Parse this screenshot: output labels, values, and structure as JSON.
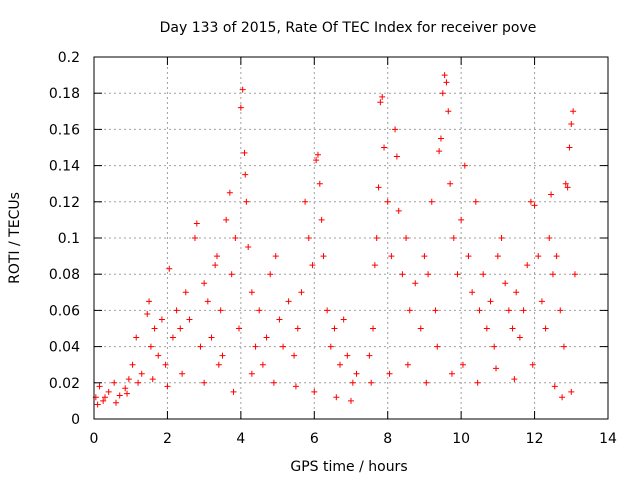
{
  "chart_data": {
    "type": "scatter",
    "title": "Day 133 of 2015, Rate Of TEC Index for receiver pove",
    "xlabel": "GPS time / hours",
    "ylabel": "ROTI / TECUs",
    "xlim": [
      0,
      14
    ],
    "ylim": [
      0,
      0.2
    ],
    "x_ticks": [
      "0",
      "2",
      "4",
      "6",
      "8",
      "10",
      "12",
      "14"
    ],
    "y_ticks": [
      "0",
      "0.02",
      "0.04",
      "0.06",
      "0.08",
      "0.1",
      "0.12",
      "0.14",
      "0.16",
      "0.18",
      "0.2"
    ],
    "grid": true,
    "marker": "+",
    "series_color": "#ff0000",
    "series": [
      {
        "name": "ROTI",
        "x": [
          0.05,
          0.15,
          0.25,
          0.4,
          0.55,
          0.7,
          0.85,
          0.95,
          1.05,
          1.15,
          1.3,
          1.45,
          1.5,
          1.55,
          1.65,
          1.75,
          1.85,
          1.95,
          2.05,
          2.15,
          2.25,
          2.35,
          2.5,
          2.6,
          2.75,
          2.8,
          2.9,
          3.0,
          3.1,
          3.2,
          3.3,
          3.35,
          3.45,
          3.5,
          3.6,
          3.7,
          3.75,
          3.85,
          3.95,
          4.0,
          4.05,
          4.1,
          4.12,
          4.15,
          4.2,
          4.3,
          4.4,
          4.5,
          4.6,
          4.7,
          4.8,
          4.95,
          5.05,
          5.15,
          5.3,
          5.45,
          5.55,
          5.65,
          5.75,
          5.85,
          5.95,
          6.05,
          6.1,
          6.15,
          6.2,
          6.25,
          6.35,
          6.45,
          6.55,
          6.7,
          6.8,
          6.9,
          7.05,
          7.15,
          7.5,
          7.6,
          7.65,
          7.7,
          7.75,
          7.8,
          7.85,
          7.9,
          8.0,
          8.1,
          8.2,
          8.25,
          8.3,
          8.4,
          8.5,
          8.6,
          8.75,
          8.9,
          9.0,
          9.1,
          9.2,
          9.3,
          9.4,
          9.45,
          9.5,
          9.55,
          9.6,
          9.65,
          9.7,
          9.8,
          9.9,
          10.0,
          10.1,
          10.2,
          10.3,
          10.4,
          10.5,
          10.6,
          10.7,
          10.8,
          10.9,
          11.0,
          11.1,
          11.2,
          11.3,
          11.4,
          11.5,
          11.6,
          11.7,
          11.8,
          11.9,
          12.0,
          12.1,
          12.2,
          12.3,
          12.4,
          12.45,
          12.5,
          12.6,
          12.7,
          12.8,
          12.85,
          12.9,
          12.95,
          13.0,
          13.05,
          13.1,
          0.1,
          0.3,
          0.6,
          0.9,
          1.2,
          1.6,
          2.0,
          2.4,
          3.0,
          3.4,
          3.8,
          4.3,
          4.9,
          5.5,
          6.0,
          6.6,
          7.0,
          7.55,
          8.05,
          8.55,
          9.05,
          9.35,
          9.75,
          10.05,
          10.45,
          10.95,
          11.45,
          11.95,
          12.55,
          12.75,
          13.0
        ],
        "y": [
          0.012,
          0.018,
          0.01,
          0.015,
          0.02,
          0.013,
          0.017,
          0.022,
          0.03,
          0.045,
          0.025,
          0.058,
          0.065,
          0.04,
          0.05,
          0.035,
          0.055,
          0.03,
          0.083,
          0.045,
          0.06,
          0.05,
          0.07,
          0.055,
          0.1,
          0.108,
          0.04,
          0.075,
          0.065,
          0.045,
          0.085,
          0.09,
          0.06,
          0.035,
          0.11,
          0.125,
          0.08,
          0.1,
          0.05,
          0.172,
          0.182,
          0.147,
          0.135,
          0.12,
          0.095,
          0.07,
          0.04,
          0.06,
          0.03,
          0.045,
          0.08,
          0.09,
          0.055,
          0.04,
          0.065,
          0.035,
          0.05,
          0.07,
          0.12,
          0.1,
          0.085,
          0.143,
          0.146,
          0.13,
          0.11,
          0.09,
          0.06,
          0.04,
          0.05,
          0.03,
          0.055,
          0.035,
          0.02,
          0.025,
          0.035,
          0.05,
          0.085,
          0.1,
          0.128,
          0.175,
          0.178,
          0.15,
          0.12,
          0.09,
          0.16,
          0.145,
          0.115,
          0.08,
          0.1,
          0.06,
          0.075,
          0.05,
          0.09,
          0.08,
          0.12,
          0.06,
          0.148,
          0.155,
          0.18,
          0.19,
          0.186,
          0.17,
          0.13,
          0.1,
          0.08,
          0.11,
          0.14,
          0.09,
          0.07,
          0.12,
          0.06,
          0.08,
          0.05,
          0.065,
          0.04,
          0.09,
          0.1,
          0.075,
          0.06,
          0.05,
          0.07,
          0.045,
          0.06,
          0.085,
          0.12,
          0.118,
          0.09,
          0.065,
          0.05,
          0.1,
          0.124,
          0.08,
          0.09,
          0.06,
          0.04,
          0.13,
          0.128,
          0.15,
          0.163,
          0.17,
          0.08,
          0.008,
          0.012,
          0.009,
          0.014,
          0.02,
          0.022,
          0.018,
          0.025,
          0.02,
          0.03,
          0.015,
          0.025,
          0.02,
          0.018,
          0.015,
          0.012,
          0.01,
          0.02,
          0.025,
          0.03,
          0.02,
          0.04,
          0.025,
          0.03,
          0.02,
          0.028,
          0.022,
          0.03,
          0.018,
          0.012,
          0.015
        ]
      }
    ]
  }
}
